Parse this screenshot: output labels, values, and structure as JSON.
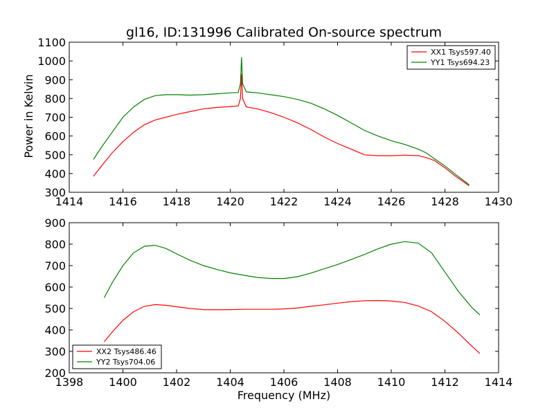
{
  "chart_data": [
    {
      "type": "line",
      "title": "gl16, ID:131996 Calibrated On-source spectrum",
      "xlabel": "",
      "ylabel": "Power in Kelvin",
      "xlim": [
        1414,
        1430
      ],
      "ylim": [
        300,
        1100
      ],
      "xticks": [
        1414,
        1416,
        1418,
        1420,
        1422,
        1424,
        1426,
        1428,
        1430
      ],
      "yticks": [
        300,
        400,
        500,
        600,
        700,
        800,
        900,
        1000,
        1100
      ],
      "legend_position": "top-right",
      "grid": false,
      "series": [
        {
          "name": "XX1 Tsys597.40",
          "color": "#ff0000",
          "x": [
            1414.9,
            1415.2,
            1415.6,
            1416.0,
            1416.4,
            1416.8,
            1417.2,
            1417.6,
            1418.0,
            1418.5,
            1419.0,
            1419.5,
            1420.0,
            1420.3,
            1420.38,
            1420.42,
            1420.46,
            1420.6,
            1421.0,
            1421.5,
            1422.0,
            1422.5,
            1423.0,
            1423.5,
            1424.0,
            1424.5,
            1425.0,
            1425.5,
            1426.0,
            1426.5,
            1427.0,
            1427.3,
            1427.6,
            1428.0,
            1428.4,
            1428.9
          ],
          "values": [
            385,
            440,
            510,
            570,
            620,
            660,
            685,
            700,
            715,
            730,
            745,
            752,
            757,
            760,
            800,
            930,
            800,
            755,
            745,
            725,
            700,
            670,
            635,
            595,
            560,
            530,
            500,
            495,
            495,
            498,
            495,
            485,
            470,
            430,
            385,
            335
          ]
        },
        {
          "name": "YY1 Tsys694.23",
          "color": "#008000",
          "x": [
            1414.9,
            1415.2,
            1415.6,
            1416.0,
            1416.4,
            1416.8,
            1417.2,
            1417.6,
            1418.0,
            1418.5,
            1419.0,
            1419.5,
            1420.0,
            1420.3,
            1420.38,
            1420.42,
            1420.46,
            1420.6,
            1421.0,
            1421.5,
            1422.0,
            1422.5,
            1423.0,
            1423.5,
            1424.0,
            1424.5,
            1425.0,
            1425.5,
            1426.0,
            1426.5,
            1427.0,
            1427.3,
            1427.6,
            1428.0,
            1428.4,
            1428.9
          ],
          "values": [
            475,
            540,
            620,
            700,
            755,
            795,
            815,
            820,
            820,
            818,
            820,
            825,
            830,
            832,
            880,
            1020,
            880,
            835,
            830,
            820,
            810,
            795,
            775,
            745,
            710,
            670,
            630,
            600,
            575,
            555,
            530,
            510,
            480,
            440,
            395,
            340
          ]
        }
      ]
    },
    {
      "type": "line",
      "title": "",
      "xlabel": "Frequency (MHz)",
      "ylabel": "",
      "xlim": [
        1398,
        1414
      ],
      "ylim": [
        200,
        900
      ],
      "xticks": [
        1398,
        1400,
        1402,
        1404,
        1406,
        1408,
        1410,
        1412,
        1414
      ],
      "yticks": [
        200,
        300,
        400,
        500,
        600,
        700,
        800,
        900
      ],
      "legend_position": "bottom-left",
      "grid": false,
      "series": [
        {
          "name": "XX2 Tsys486.46",
          "color": "#ff0000",
          "x": [
            1399.3,
            1399.6,
            1400.0,
            1400.4,
            1400.8,
            1401.2,
            1401.6,
            1402.0,
            1402.5,
            1403.0,
            1403.5,
            1404.0,
            1404.5,
            1405.0,
            1405.5,
            1406.0,
            1406.5,
            1407.0,
            1407.5,
            1408.0,
            1408.5,
            1409.0,
            1409.5,
            1410.0,
            1410.5,
            1411.0,
            1411.5,
            1412.0,
            1412.5,
            1413.0,
            1413.3
          ],
          "values": [
            345,
            390,
            445,
            485,
            510,
            518,
            515,
            508,
            500,
            495,
            494,
            495,
            496,
            496,
            496,
            498,
            502,
            510,
            517,
            525,
            532,
            536,
            537,
            535,
            528,
            512,
            485,
            440,
            385,
            325,
            290
          ]
        },
        {
          "name": "YY2 Tsys704.06",
          "color": "#008000",
          "x": [
            1399.3,
            1399.6,
            1400.0,
            1400.4,
            1400.8,
            1401.2,
            1401.6,
            1402.0,
            1402.5,
            1403.0,
            1403.5,
            1404.0,
            1404.5,
            1405.0,
            1405.5,
            1406.0,
            1406.5,
            1407.0,
            1407.5,
            1408.0,
            1408.5,
            1409.0,
            1409.5,
            1410.0,
            1410.5,
            1411.0,
            1411.5,
            1412.0,
            1412.5,
            1413.0,
            1413.3
          ],
          "values": [
            550,
            620,
            700,
            760,
            790,
            795,
            780,
            755,
            725,
            700,
            682,
            666,
            655,
            645,
            640,
            640,
            648,
            665,
            685,
            705,
            728,
            752,
            778,
            800,
            812,
            805,
            760,
            670,
            580,
            505,
            470
          ]
        }
      ]
    }
  ]
}
